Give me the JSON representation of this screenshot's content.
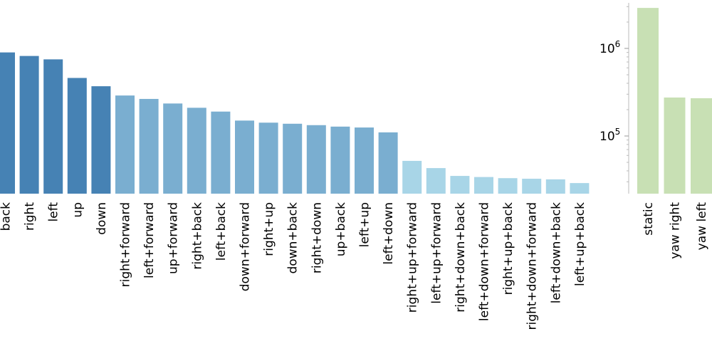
{
  "chart_data": [
    {
      "type": "bar",
      "scale": "log",
      "ylim": [
        25000,
        3200000
      ],
      "grid": false,
      "categories": [
        "back",
        "right",
        "left",
        "up",
        "down",
        "right+forward",
        "left+forward",
        "up+forward",
        "right+back",
        "left+back",
        "down+forward",
        "right+up",
        "down+back",
        "right+down",
        "up+back",
        "left+up",
        "left+down",
        "right+up+forward",
        "left+up+forward",
        "right+down+back",
        "left+down+forward",
        "right+up+back",
        "right+down+forward",
        "left+down+back",
        "left+up+back"
      ],
      "values": [
        900000,
        820000,
        750000,
        460000,
        370000,
        290000,
        265000,
        235000,
        210000,
        190000,
        150000,
        142000,
        138000,
        133000,
        128000,
        125000,
        110000,
        52000,
        43000,
        35000,
        34000,
        33000,
        32500,
        32000,
        29000
      ],
      "colors": [
        "#4682b4",
        "#4682b4",
        "#4682b4",
        "#4682b4",
        "#4682b4",
        "#7aaed0",
        "#7aaed0",
        "#7aaed0",
        "#7aaed0",
        "#7aaed0",
        "#7aaed0",
        "#7aaed0",
        "#7aaed0",
        "#7aaed0",
        "#7aaed0",
        "#7aaed0",
        "#7aaed0",
        "#a8d5e7",
        "#a8d5e7",
        "#a8d5e7",
        "#a8d5e7",
        "#a8d5e7",
        "#a8d5e7",
        "#a8d5e7",
        "#a8d5e7"
      ]
    },
    {
      "type": "bar",
      "scale": "log",
      "ylim": [
        25000,
        3200000
      ],
      "grid": false,
      "yticks": [
        {
          "base": "10",
          "exp": "6",
          "value": 1000000
        },
        {
          "base": "10",
          "exp": "5",
          "value": 100000
        }
      ],
      "categories": [
        "static",
        "yaw right",
        "yaw left"
      ],
      "values": [
        2900000,
        275000,
        270000
      ],
      "colors": [
        "#c8e0b4",
        "#c8e0b4",
        "#c8e0b4"
      ]
    }
  ]
}
